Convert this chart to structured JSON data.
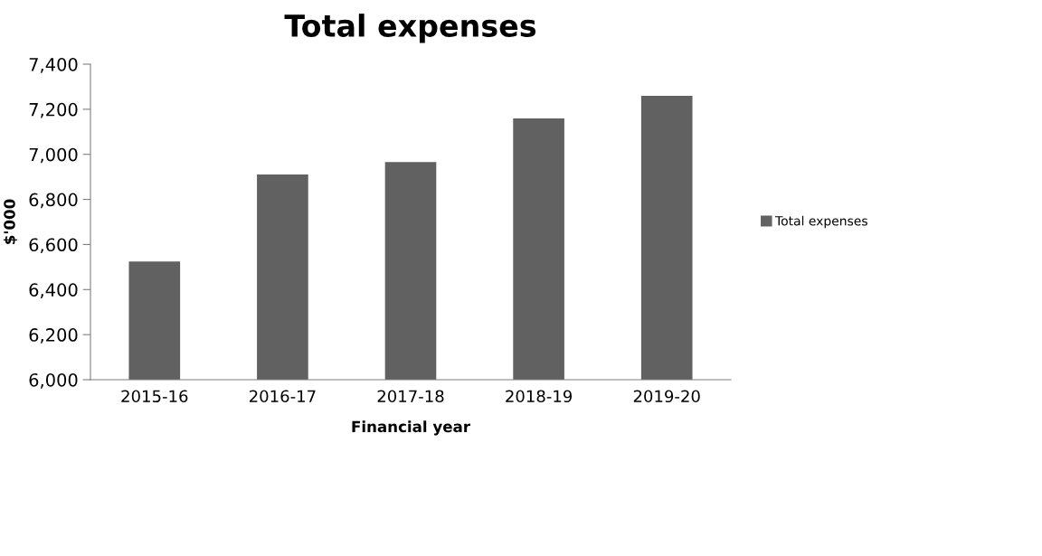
{
  "chart_data": {
    "type": "bar",
    "title": "Total expenses",
    "xlabel": "Financial year",
    "ylabel": "$'000",
    "categories": [
      "2015-16",
      "2016-17",
      "2017-18",
      "2018-19",
      "2019-20"
    ],
    "series": [
      {
        "name": "Total expenses",
        "color": "#616161",
        "values": [
          6525,
          6911,
          6966,
          7159,
          7260
        ]
      }
    ],
    "ylim": [
      6000,
      7400
    ],
    "yticks": [
      {
        "value": 6000,
        "label": "6,000"
      },
      {
        "value": 6200,
        "label": "6,200"
      },
      {
        "value": 6400,
        "label": "6,400"
      },
      {
        "value": 6600,
        "label": "6,600"
      },
      {
        "value": 6800,
        "label": "6,800"
      },
      {
        "value": 7000,
        "label": "7,000"
      },
      {
        "value": 7200,
        "label": "7,200"
      },
      {
        "value": 7400,
        "label": "7,400"
      }
    ],
    "grid": false,
    "legend": "right"
  }
}
